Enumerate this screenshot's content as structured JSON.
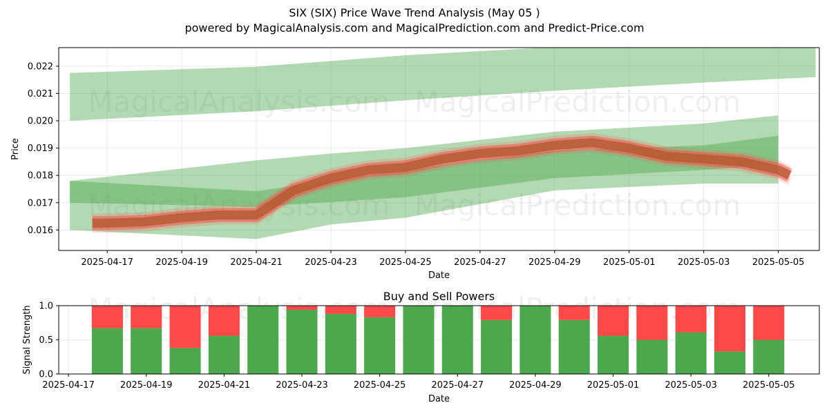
{
  "title": "SIX (SIX) Price Wave Trend Analysis (May 05 )",
  "subtitle": "powered by MagicalAnalysis.com and MagicalPrediction.com and Predict-Price.com",
  "watermarks": [
    "MagicalAnalysis.com",
    "MagicalPrediction.com"
  ],
  "colors": {
    "green_band": "#4ca84c",
    "red_line": "#ff4d4d",
    "brown_line": "#b0552a",
    "buy": "#4ca84c",
    "sell": "#ff4848"
  },
  "chart_data": [
    {
      "type": "area",
      "title": "",
      "xlabel": "Date",
      "ylabel": "Price",
      "x_ticks": [
        "2025-04-17",
        "2025-04-19",
        "2025-04-21",
        "2025-04-23",
        "2025-04-25",
        "2025-04-27",
        "2025-04-29",
        "2025-05-01",
        "2025-05-03",
        "2025-05-05"
      ],
      "y_ticks": [
        0.016,
        0.017,
        0.018,
        0.019,
        0.02,
        0.021,
        0.022
      ],
      "xlim": [
        "2025-04-15.7",
        "2025-05-06.1"
      ],
      "ylim": [
        0.01525,
        0.02268
      ],
      "grid": true,
      "bands": [
        {
          "name": "upper",
          "x": [
            "2025-04-16",
            "2025-04-21",
            "2025-04-25",
            "2025-04-29",
            "2025-05-03",
            "2025-05-06"
          ],
          "lower": [
            0.02,
            0.02035,
            0.02075,
            0.0211,
            0.0214,
            0.0216
          ],
          "upper": [
            0.02175,
            0.02198,
            0.0224,
            0.0227,
            0.0228,
            0.0228
          ]
        },
        {
          "name": "wide-lower",
          "x": [
            "2025-04-16",
            "2025-04-21",
            "2025-04-23",
            "2025-04-25",
            "2025-04-29",
            "2025-05-03",
            "2025-05-05"
          ],
          "lower": [
            0.016,
            0.01567,
            0.0162,
            0.01645,
            0.01745,
            0.0177,
            0.0177
          ],
          "upper": [
            0.0178,
            0.01855,
            0.0188,
            0.019,
            0.0196,
            0.0199,
            0.0202
          ]
        },
        {
          "name": "narrow-lower",
          "x": [
            "2025-04-16",
            "2025-04-21",
            "2025-04-25",
            "2025-04-29",
            "2025-05-03",
            "2025-05-05"
          ],
          "lower": [
            0.017,
            0.01685,
            0.0172,
            0.0179,
            0.0182,
            0.0184
          ],
          "upper": [
            0.0178,
            0.01742,
            0.0182,
            0.0189,
            0.0191,
            0.01945
          ]
        }
      ],
      "series": [
        {
          "x": [
            "2025-04-16.6",
            "2025-04-17",
            "2025-04-18",
            "2025-04-19",
            "2025-04-20",
            "2025-04-21",
            "2025-04-21.5",
            "2025-04-22",
            "2025-04-23",
            "2025-04-24",
            "2025-04-25",
            "2025-04-26",
            "2025-04-27",
            "2025-04-28",
            "2025-04-29",
            "2025-04-30",
            "2025-05-01",
            "2025-05-02",
            "2025-05-03",
            "2025-05-04",
            "2025-05-05",
            "2025-05-05.3"
          ],
          "values": [
            0.01625,
            0.01625,
            0.0163,
            0.01645,
            0.01655,
            0.01655,
            0.017,
            0.01745,
            0.0179,
            0.0182,
            0.0183,
            0.0186,
            0.0188,
            0.0189,
            0.0191,
            0.0192,
            0.019,
            0.0187,
            0.0186,
            0.0185,
            0.0182,
            0.018
          ]
        }
      ]
    },
    {
      "type": "bar",
      "title": "Buy and Sell Powers",
      "xlabel": "Date",
      "ylabel": "Signal Strength",
      "x_ticks": [
        "2025-04-17",
        "2025-04-19",
        "2025-04-21",
        "2025-04-23",
        "2025-04-25",
        "2025-04-27",
        "2025-04-29",
        "2025-05-01",
        "2025-05-03",
        "2025-05-05"
      ],
      "y_ticks": [
        0.0,
        0.5,
        1.0
      ],
      "ylim": [
        0,
        1
      ],
      "grid": true,
      "categories": [
        "2025-04-18",
        "2025-04-19",
        "2025-04-20",
        "2025-04-21",
        "2025-04-22",
        "2025-04-23",
        "2025-04-24",
        "2025-04-25",
        "2025-04-26",
        "2025-04-27",
        "2025-04-28",
        "2025-04-29",
        "2025-04-30",
        "2025-05-01",
        "2025-05-02",
        "2025-05-03",
        "2025-05-04",
        "2025-05-05"
      ],
      "series": [
        {
          "name": "Buy",
          "values": [
            0.67,
            0.67,
            0.38,
            0.56,
            1.0,
            0.94,
            0.88,
            0.83,
            1.0,
            1.0,
            0.79,
            1.0,
            0.79,
            0.56,
            0.5,
            0.61,
            0.33,
            0.5
          ]
        },
        {
          "name": "Sell",
          "values": [
            0.33,
            0.33,
            0.62,
            0.44,
            0.0,
            0.06,
            0.12,
            0.17,
            0.0,
            0.0,
            0.21,
            0.0,
            0.21,
            0.44,
            0.5,
            0.39,
            0.67,
            0.5
          ]
        }
      ]
    }
  ]
}
